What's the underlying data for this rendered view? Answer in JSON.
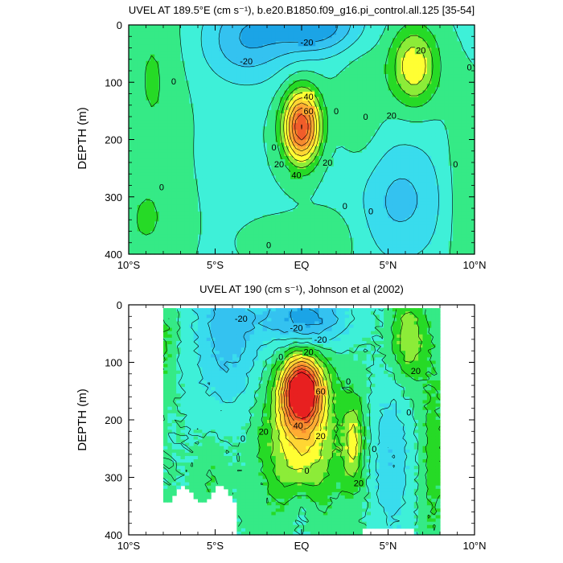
{
  "chart_data": [
    {
      "type": "contour",
      "title": "UVEL AT 189.5°E (cm s⁻¹), b.e20.B1850.f09_g16.pi_control.all.125 [35-54]",
      "ylabel": "DEPTH (m)",
      "xlabel": "",
      "xlim": [
        -10,
        10
      ],
      "ylim": [
        400,
        0
      ],
      "xticks": [
        {
          "v": -10,
          "label": "10°S"
        },
        {
          "v": -5,
          "label": "5°S"
        },
        {
          "v": 0,
          "label": "EQ"
        },
        {
          "v": 5,
          "label": "5°N"
        },
        {
          "v": 10,
          "label": "10°N"
        }
      ],
      "yticks": [
        0,
        100,
        200,
        300,
        400
      ],
      "contour_interval": 10,
      "features": [
        {
          "name": "Equatorial Undercurrent",
          "lat": 0.0,
          "depth": 175,
          "peak": 80
        },
        {
          "name": "North Equatorial Countercurrent",
          "lat": 6.5,
          "depth": 70,
          "peak": 40
        },
        {
          "name": "South Equatorial Current",
          "lat": 1.0,
          "depth": 0,
          "peak": -40
        }
      ],
      "contour_labels": [
        {
          "lat": -7.4,
          "depth": 98,
          "text": "0"
        },
        {
          "lat": -3.2,
          "depth": 63,
          "text": "-20"
        },
        {
          "lat": 0.3,
          "depth": 30,
          "text": "-20"
        },
        {
          "lat": 6.9,
          "depth": 44,
          "text": "20"
        },
        {
          "lat": 9.7,
          "depth": 74,
          "text": "0"
        },
        {
          "lat": 0.4,
          "depth": 125,
          "text": "40"
        },
        {
          "lat": 0.4,
          "depth": 150,
          "text": "60"
        },
        {
          "lat": 2.0,
          "depth": 150,
          "text": "0"
        },
        {
          "lat": 3.7,
          "depth": 160,
          "text": "0"
        },
        {
          "lat": 5.2,
          "depth": 158,
          "text": "20"
        },
        {
          "lat": -1.6,
          "depth": 213,
          "text": "0"
        },
        {
          "lat": -1.3,
          "depth": 243,
          "text": "20"
        },
        {
          "lat": -0.3,
          "depth": 262,
          "text": "40"
        },
        {
          "lat": 1.5,
          "depth": 240,
          "text": "20"
        },
        {
          "lat": 8.9,
          "depth": 243,
          "text": "0"
        },
        {
          "lat": -8.1,
          "depth": 283,
          "text": "0"
        },
        {
          "lat": 2.5,
          "depth": 316,
          "text": "0"
        },
        {
          "lat": 4.0,
          "depth": 325,
          "text": "0"
        },
        {
          "lat": -1.9,
          "depth": 384,
          "text": "0"
        }
      ]
    },
    {
      "type": "contour",
      "title": "UVEL AT 190 (cm s⁻¹), Johnson et al (2002)",
      "ylabel": "DEPTH (m)",
      "xlabel": "",
      "xlim": [
        -10,
        10
      ],
      "ylim": [
        400,
        0
      ],
      "xticks": [
        {
          "v": -10,
          "label": "10°S"
        },
        {
          "v": -5,
          "label": "5°S"
        },
        {
          "v": 0,
          "label": "EQ"
        },
        {
          "v": 5,
          "label": "5°N"
        },
        {
          "v": 10,
          "label": "10°N"
        }
      ],
      "yticks": [
        0,
        100,
        200,
        300,
        400
      ],
      "contour_interval": 10,
      "data_extent_lat": [
        -8,
        8
      ],
      "features": [
        {
          "name": "Equatorial Undercurrent",
          "lat": 0.0,
          "depth": 150,
          "peak": 90
        },
        {
          "name": "Off-equatorial jet",
          "lat": 3.0,
          "depth": 240,
          "peak": 30
        },
        {
          "name": "North Equatorial Countercurrent",
          "lat": 6.2,
          "depth": 60,
          "peak": 30
        }
      ],
      "contour_labels": [
        {
          "lat": -3.5,
          "depth": 24,
          "text": "-20"
        },
        {
          "lat": -0.3,
          "depth": 40,
          "text": "-20"
        },
        {
          "lat": 1.1,
          "depth": 60,
          "text": "-20"
        },
        {
          "lat": -1.2,
          "depth": 90,
          "text": "0"
        },
        {
          "lat": 0.4,
          "depth": 82,
          "text": "20"
        },
        {
          "lat": 2.7,
          "depth": 133,
          "text": "0"
        },
        {
          "lat": 6.6,
          "depth": 115,
          "text": "20"
        },
        {
          "lat": 1.1,
          "depth": 150,
          "text": "60"
        },
        {
          "lat": -2.2,
          "depth": 220,
          "text": "20"
        },
        {
          "lat": -0.2,
          "depth": 210,
          "text": "40"
        },
        {
          "lat": 1.1,
          "depth": 228,
          "text": "20"
        },
        {
          "lat": -3.4,
          "depth": 232,
          "text": "0"
        },
        {
          "lat": 6.2,
          "depth": 187,
          "text": "0"
        },
        {
          "lat": 4.2,
          "depth": 250,
          "text": "0"
        },
        {
          "lat": 0.3,
          "depth": 288,
          "text": "0"
        },
        {
          "lat": 3.3,
          "depth": 310,
          "text": "20"
        }
      ]
    }
  ],
  "colors": {
    "levels": [
      -40,
      -30,
      -20,
      -10,
      0,
      10,
      20,
      30,
      40,
      50,
      60,
      70,
      80
    ],
    "fills": [
      "#1ba4e6",
      "#34c2f0",
      "#39dced",
      "#3ef0d8",
      "#35ea86",
      "#26da26",
      "#8cec38",
      "#ffff33",
      "#ffd633",
      "#ffac33",
      "#f58a2e",
      "#f15d2a",
      "#e82020"
    ]
  }
}
